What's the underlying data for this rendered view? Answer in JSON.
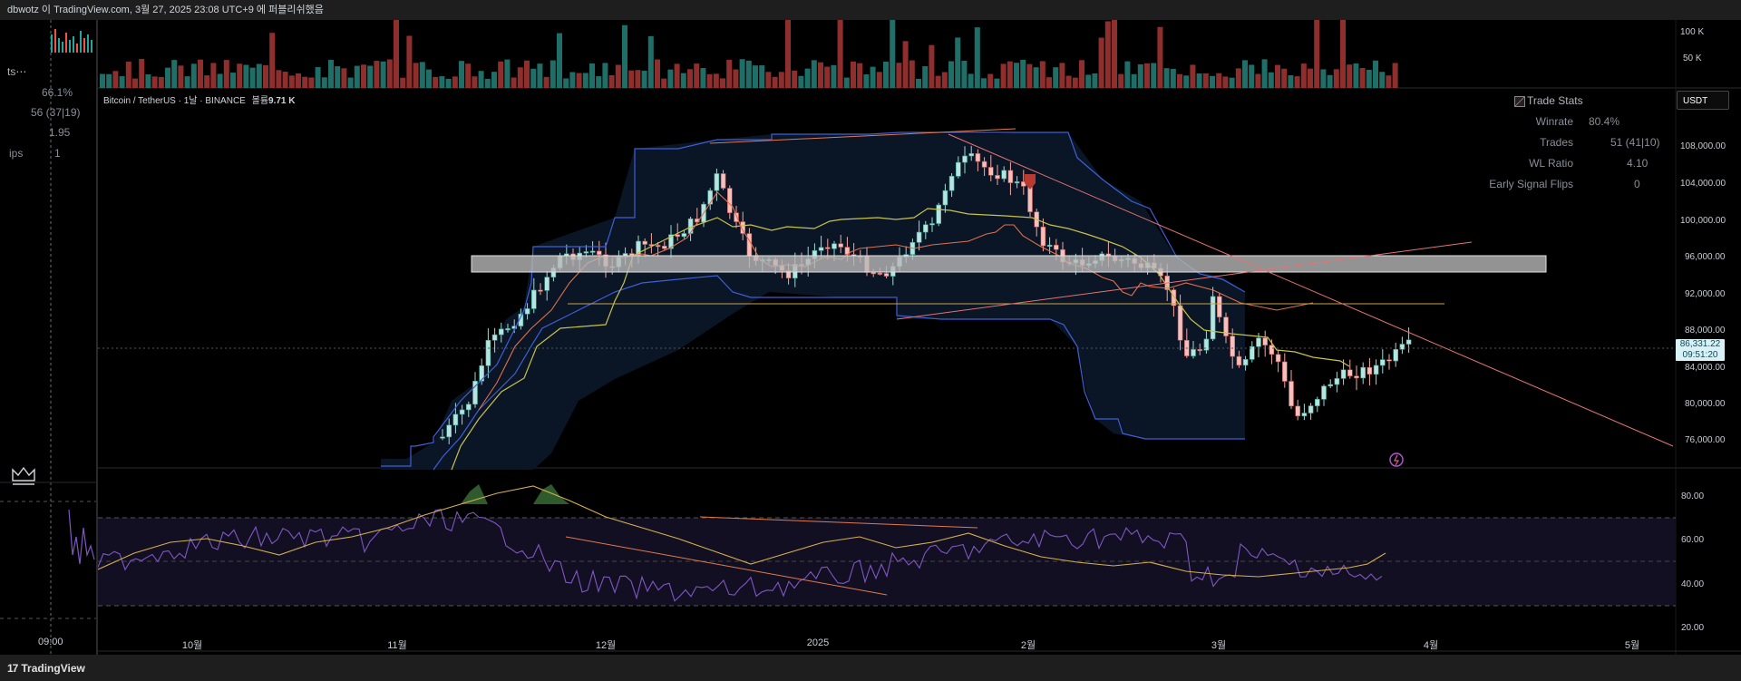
{
  "header": {
    "publish_line": "dbwotz 이 TradingView.com, 3월 27, 2025 23:08 UTC+9 에 퍼블리쉬했음"
  },
  "footer": {
    "brand": "TradingView",
    "brand_mark": "17"
  },
  "left_panel": {
    "title_fragment": "ts⋯",
    "rows": [
      "66.1%",
      "56 (37|19)",
      "1.95",
      "1"
    ],
    "row_label": "ips",
    "time_label": "09:00"
  },
  "chart": {
    "legend_symbol": "Bitcoin / TetherUS · 1날 · BINANCE",
    "legend_volume_label": "볼륨",
    "legend_volume_value": "9.71 K",
    "currency_button": "USDT",
    "current_price": "86,331.22",
    "countdown": "09:51:20",
    "price_ticks": [
      "108,000.00",
      "104,000.00",
      "100,000.00",
      "96,000.00",
      "92,000.00",
      "88,000.00",
      "84,000.00",
      "80,000.00",
      "76,000.00"
    ],
    "volume_ticks": [
      "100 K",
      "50 K"
    ],
    "rsi_ticks": [
      "80.00",
      "60.00",
      "40.00",
      "20.00"
    ],
    "x_ticks": [
      "10월",
      "11월",
      "12월",
      "2025",
      "2월",
      "3월",
      "4월",
      "5월"
    ]
  },
  "trade_stats": {
    "title": "Trade Stats",
    "rows": [
      {
        "label": "Winrate",
        "value": "80.4%"
      },
      {
        "label": "Trades",
        "value": "51 (41|10)"
      },
      {
        "label": "WL Ratio",
        "value": "4.10"
      },
      {
        "label": "Early Signal Flips",
        "value": "0"
      }
    ]
  },
  "colors": {
    "up": "#26a69a",
    "down": "#ef5350",
    "band": "#3f5fd6",
    "mid": "#d6cf55",
    "trend": "#e57373",
    "rsi": "#7e57c2",
    "rsi_ma": "#d4b04a"
  }
}
